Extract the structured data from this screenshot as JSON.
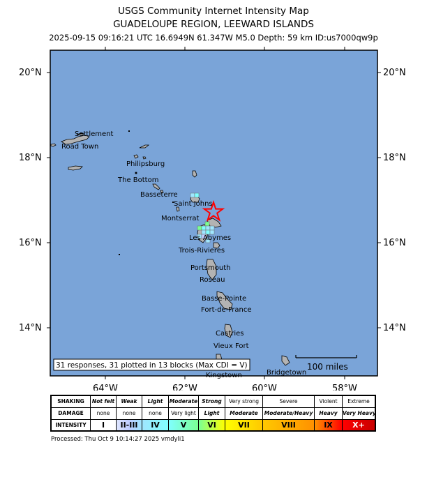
{
  "header": {
    "title": "USGS Community Internet Intensity Map",
    "region": "GUADELOUPE REGION, LEEWARD ISLANDS",
    "event_line": "2025-09-15 09:16:21 UTC 16.6949N 61.347W M5.0 Depth: 59 km ID:us7000qw9p"
  },
  "map": {
    "ocean_color": "#7aa4d8",
    "land_color": "#b3b3b3",
    "epicenter_color": "#ff0000",
    "epicenter_icon": "star-icon",
    "lat_ticks": [
      "20°N",
      "18°N",
      "16°N",
      "14°N"
    ],
    "lon_ticks": [
      "64°W",
      "62°W",
      "60°W",
      "58°W"
    ],
    "places": [
      "Settlement",
      "Road Town",
      "Philipsburg",
      "The Bottom",
      "Basseterre",
      "Saint Johns",
      "Montserrat",
      "Les Abymes",
      "Trois-Rivieres",
      "Portsmouth",
      "Roseau",
      "Basse-Pointe",
      "Fort-de-France",
      "Castries",
      "Vieux Fort",
      "Bridgetown",
      "Kingstown"
    ],
    "responses_box": "31 responses, 31 plotted in 13 blocks (Max CDI = V)",
    "scale_bar": "100 miles"
  },
  "legend": {
    "row_labels": [
      "SHAKING",
      "DAMAGE",
      "INTENSITY"
    ],
    "shaking": [
      "Not felt",
      "Weak",
      "Light",
      "Moderate",
      "Strong",
      "Very strong",
      "Severe",
      "Violent",
      "Extreme"
    ],
    "damage": [
      "none",
      "none",
      "none",
      "Very light",
      "Light",
      "Moderate",
      "Moderate/Heavy",
      "Heavy",
      "Very Heavy"
    ],
    "intensity": [
      "I",
      "II-III",
      "IV",
      "V",
      "VI",
      "VII",
      "VIII",
      "IX",
      "X+"
    ],
    "intensity_colors": [
      "#ffffff",
      "#bfccff",
      "#a0e6ff",
      "#80ffff",
      "#7aff93",
      "#ffff00",
      "#ffc800",
      "#ff9100",
      "#ff0000",
      "#c80000"
    ]
  },
  "footer": {
    "processed": "Processed: Thu Oct  9 10:14:27 2025 vmdyli1"
  }
}
